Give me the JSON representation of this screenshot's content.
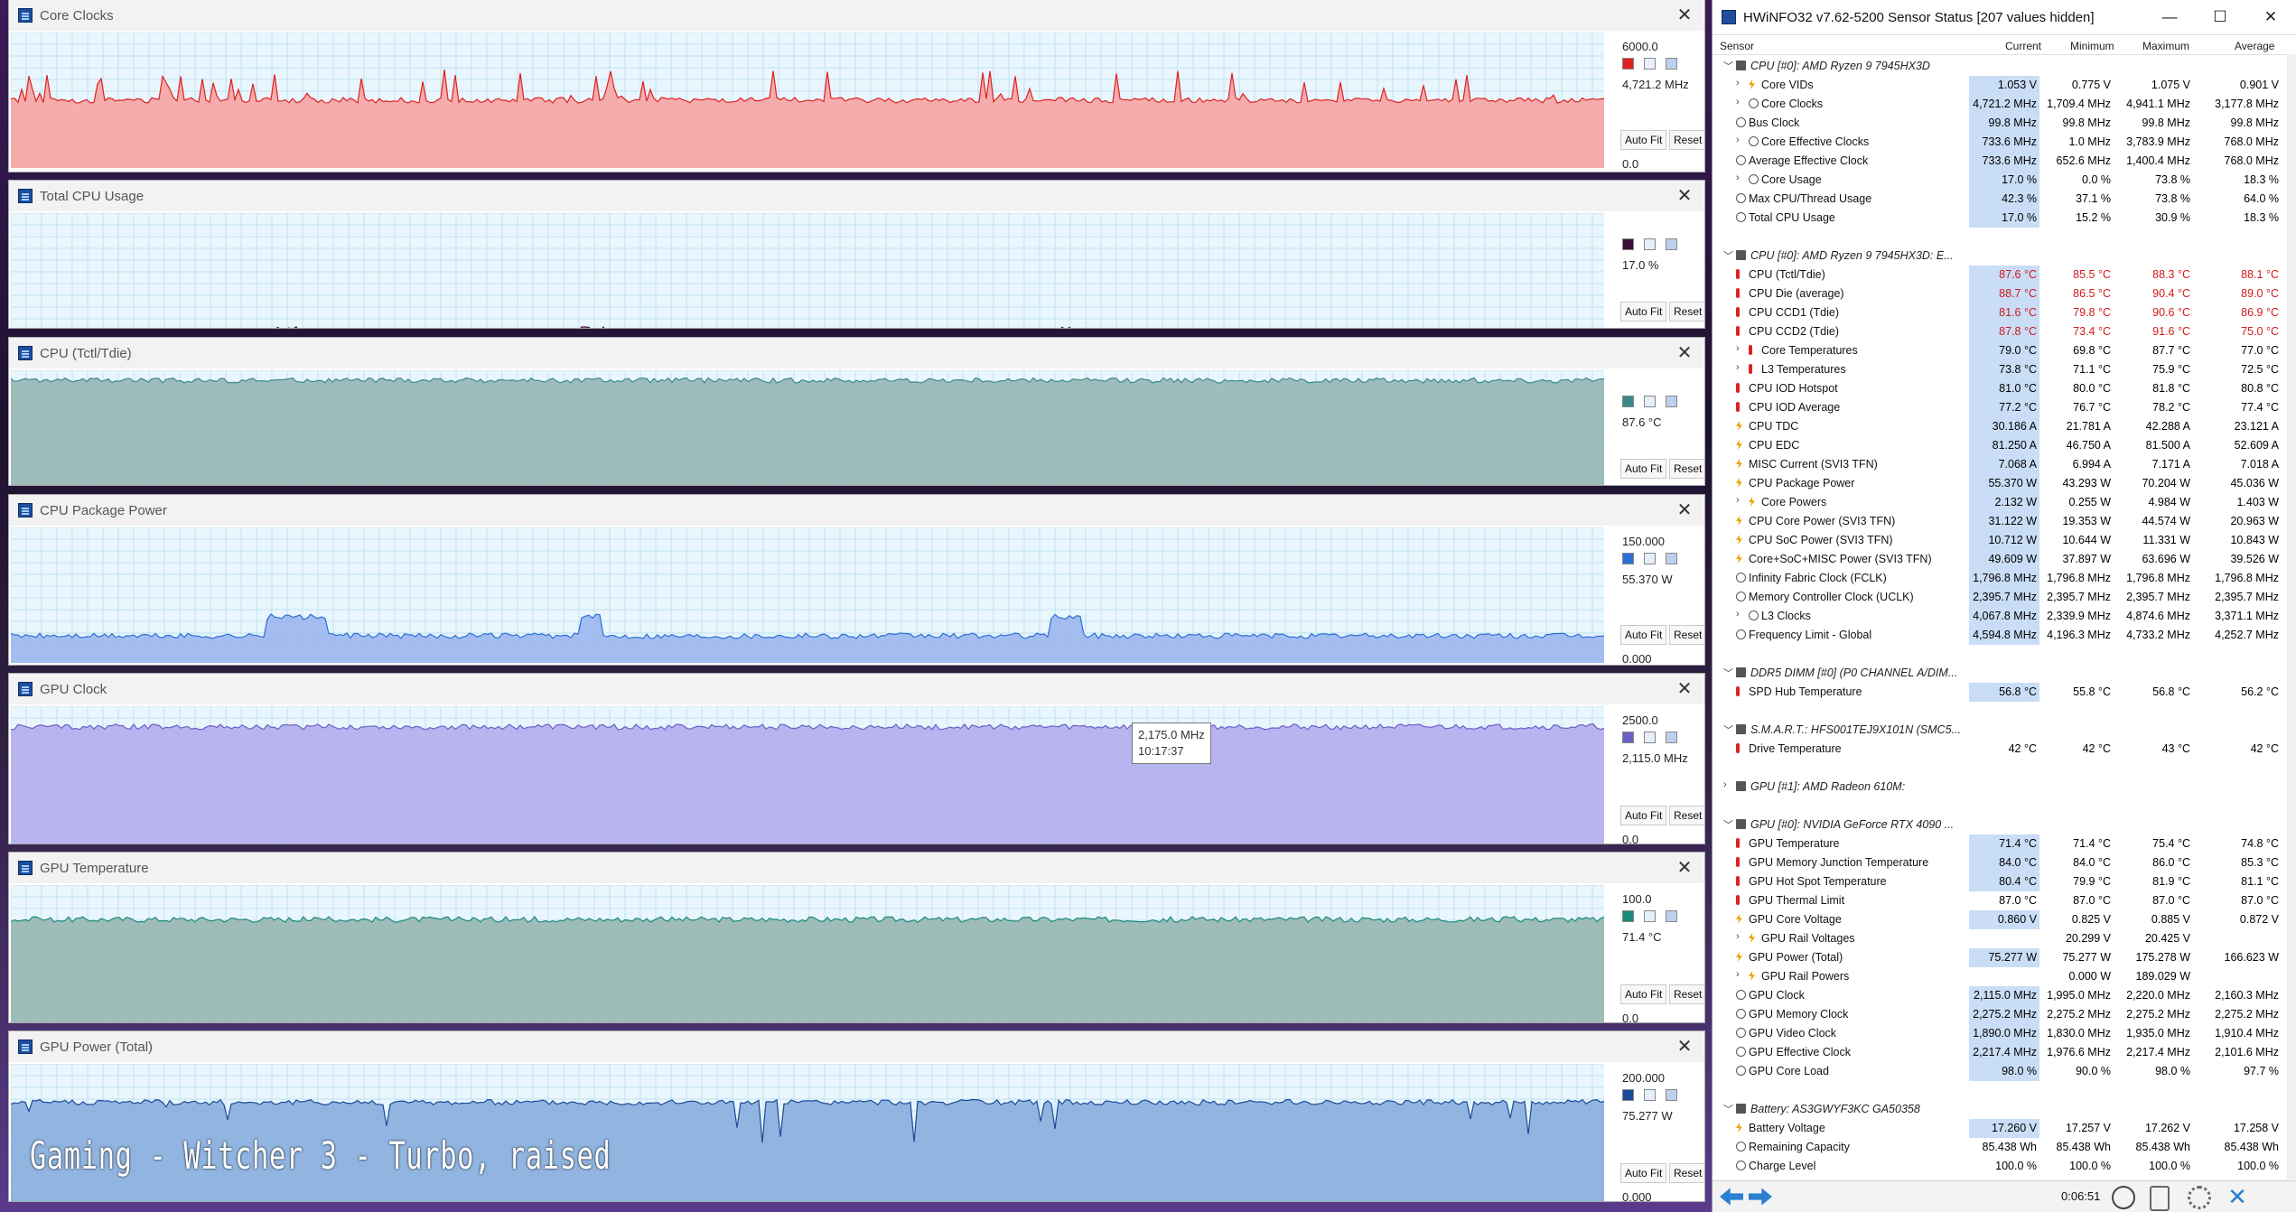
{
  "overlay_caption": "Gaming - Witcher 3 - Turbo, raised",
  "graphs": [
    {
      "title": "Core Clocks",
      "max": "6000.0",
      "current": "4,721.2 MHz",
      "min": "0.0",
      "color": "#e02020",
      "fill": "#f5a8a8"
    },
    {
      "title": "Total CPU Usage",
      "max": "",
      "current": "17.0 %",
      "min": "0.0",
      "color": "#3a0f3a",
      "fill": "#bcaec4"
    },
    {
      "title": "CPU (Tctl/Tdie)",
      "max": "",
      "current": "87.6 °C",
      "min": "0.0",
      "color": "#3a8a8a",
      "fill": "#9ab8b8"
    },
    {
      "title": "CPU Package Power",
      "max": "150.000",
      "current": "55.370 W",
      "min": "0.000",
      "color": "#2b6fd6",
      "fill": "#9fb9ef"
    },
    {
      "title": "GPU Clock",
      "max": "2500.0",
      "current": "2,115.0 MHz",
      "min": "0.0",
      "color": "#6a60c8",
      "fill": "#b4b0ee"
    },
    {
      "title": "GPU Temperature",
      "max": "100.0",
      "current": "71.4 °C",
      "min": "0.0",
      "color": "#1a8a7a",
      "fill": "#9ab8b4"
    },
    {
      "title": "GPU Power (Total)",
      "max": "200.000",
      "current": "75.277 W",
      "min": "0.000",
      "color": "#1a4a9a",
      "fill": "#8cb0de"
    }
  ],
  "buttons": {
    "autofit": "Auto Fit",
    "reset": "Reset"
  },
  "tooltip": {
    "value": "2,175.0 MHz",
    "time": "10:17:37"
  },
  "sensor_window": {
    "title": "HWiNFO32 v7.62-5200 Sensor Status [207 values hidden]",
    "columns": {
      "sensor": "Sensor",
      "current": "Current",
      "minimum": "Minimum",
      "maximum": "Maximum",
      "average": "Average"
    },
    "elapsed": "0:06:51"
  },
  "sensor_rows": [
    {
      "type": "group",
      "label": "CPU [#0]: AMD Ryzen 9 7945HX3D",
      "expand": "﹀"
    },
    {
      "type": "row",
      "icon": "volt",
      "exp": "›",
      "indent": 2,
      "label": "Core VIDs",
      "cur": "1.053 V",
      "min": "0.775 V",
      "max": "1.075 V",
      "avg": "0.901 V"
    },
    {
      "type": "row",
      "icon": "clock",
      "exp": "›",
      "indent": 2,
      "label": "Core Clocks",
      "cur": "4,721.2 MHz",
      "min": "1,709.4 MHz",
      "max": "4,941.1 MHz",
      "avg": "3,177.8 MHz"
    },
    {
      "type": "row",
      "icon": "clock",
      "indent": 1,
      "label": "Bus Clock",
      "cur": "99.8 MHz",
      "min": "99.8 MHz",
      "max": "99.8 MHz",
      "avg": "99.8 MHz"
    },
    {
      "type": "row",
      "icon": "clock",
      "exp": "›",
      "indent": 2,
      "label": "Core Effective Clocks",
      "cur": "733.6 MHz",
      "min": "1.0 MHz",
      "max": "3,783.9 MHz",
      "avg": "768.0 MHz"
    },
    {
      "type": "row",
      "icon": "clock",
      "indent": 1,
      "label": "Average Effective Clock",
      "cur": "733.6 MHz",
      "min": "652.6 MHz",
      "max": "1,400.4 MHz",
      "avg": "768.0 MHz"
    },
    {
      "type": "row",
      "icon": "clock",
      "exp": "›",
      "indent": 2,
      "label": "Core Usage",
      "cur": "17.0 %",
      "min": "0.0 %",
      "max": "73.8 %",
      "avg": "18.3 %"
    },
    {
      "type": "row",
      "icon": "clock",
      "indent": 1,
      "label": "Max CPU/Thread Usage",
      "cur": "42.3 %",
      "min": "37.1 %",
      "max": "73.8 %",
      "avg": "64.0 %"
    },
    {
      "type": "row",
      "icon": "clock",
      "indent": 1,
      "label": "Total CPU Usage",
      "cur": "17.0 %",
      "min": "15.2 %",
      "max": "30.9 %",
      "avg": "18.3 %"
    },
    {
      "type": "blank"
    },
    {
      "type": "group",
      "label": "CPU [#0]: AMD Ryzen 9 7945HX3D: E...",
      "expand": "﹀"
    },
    {
      "type": "row",
      "icon": "temp",
      "indent": 1,
      "red": true,
      "label": "CPU (Tctl/Tdie)",
      "cur": "87.6 °C",
      "min": "85.5 °C",
      "max": "88.3 °C",
      "avg": "88.1 °C"
    },
    {
      "type": "row",
      "icon": "temp",
      "indent": 1,
      "red": true,
      "label": "CPU Die (average)",
      "cur": "88.7 °C",
      "min": "86.5 °C",
      "max": "90.4 °C",
      "avg": "89.0 °C"
    },
    {
      "type": "row",
      "icon": "temp",
      "indent": 1,
      "red": true,
      "label": "CPU CCD1 (Tdie)",
      "cur": "81.6 °C",
      "min": "79.8 °C",
      "max": "90.6 °C",
      "avg": "86.9 °C",
      "redmax": true
    },
    {
      "type": "row",
      "icon": "temp",
      "indent": 1,
      "red": true,
      "label": "CPU CCD2 (Tdie)",
      "cur": "87.8 °C",
      "min": "73.4 °C",
      "max": "91.6 °C",
      "avg": "75.0 °C"
    },
    {
      "type": "row",
      "icon": "temp",
      "exp": "›",
      "indent": 2,
      "label": "Core Temperatures",
      "cur": "79.0 °C",
      "min": "69.8 °C",
      "max": "87.7 °C",
      "avg": "77.0 °C"
    },
    {
      "type": "row",
      "icon": "temp",
      "exp": "›",
      "indent": 2,
      "label": "L3 Temperatures",
      "cur": "73.8 °C",
      "min": "71.1 °C",
      "max": "75.9 °C",
      "avg": "72.5 °C"
    },
    {
      "type": "row",
      "icon": "temp",
      "indent": 1,
      "label": "CPU IOD Hotspot",
      "cur": "81.0 °C",
      "min": "80.0 °C",
      "max": "81.8 °C",
      "avg": "80.8 °C"
    },
    {
      "type": "row",
      "icon": "temp",
      "indent": 1,
      "label": "CPU IOD Average",
      "cur": "77.2 °C",
      "min": "76.7 °C",
      "max": "78.2 °C",
      "avg": "77.4 °C"
    },
    {
      "type": "row",
      "icon": "bolt",
      "indent": 1,
      "label": "CPU TDC",
      "cur": "30.186 A",
      "min": "21.781 A",
      "max": "42.288 A",
      "avg": "23.121 A"
    },
    {
      "type": "row",
      "icon": "bolt",
      "indent": 1,
      "label": "CPU EDC",
      "cur": "81.250 A",
      "min": "46.750 A",
      "max": "81.500 A",
      "avg": "52.609 A"
    },
    {
      "type": "row",
      "icon": "bolt",
      "indent": 1,
      "label": "MISC Current (SVI3 TFN)",
      "cur": "7.068 A",
      "min": "6.994 A",
      "max": "7.171 A",
      "avg": "7.018 A"
    },
    {
      "type": "row",
      "icon": "bolt",
      "indent": 1,
      "label": "CPU Package Power",
      "cur": "55.370 W",
      "min": "43.293 W",
      "max": "70.204 W",
      "avg": "45.036 W"
    },
    {
      "type": "row",
      "icon": "bolt",
      "exp": "›",
      "indent": 2,
      "label": "Core Powers",
      "cur": "2.132 W",
      "min": "0.255 W",
      "max": "4.984 W",
      "avg": "1.403 W"
    },
    {
      "type": "row",
      "icon": "bolt",
      "indent": 1,
      "label": "CPU Core Power (SVI3 TFN)",
      "cur": "31.122 W",
      "min": "19.353 W",
      "max": "44.574 W",
      "avg": "20.963 W"
    },
    {
      "type": "row",
      "icon": "bolt",
      "indent": 1,
      "label": "CPU SoC Power (SVI3 TFN)",
      "cur": "10.712 W",
      "min": "10.644 W",
      "max": "11.331 W",
      "avg": "10.843 W"
    },
    {
      "type": "row",
      "icon": "bolt",
      "indent": 1,
      "label": "Core+SoC+MISC Power (SVI3 TFN)",
      "cur": "49.609 W",
      "min": "37.897 W",
      "max": "63.696 W",
      "avg": "39.526 W"
    },
    {
      "type": "row",
      "icon": "clock",
      "indent": 1,
      "label": "Infinity Fabric Clock (FCLK)",
      "cur": "1,796.8 MHz",
      "min": "1,796.8 MHz",
      "max": "1,796.8 MHz",
      "avg": "1,796.8 MHz"
    },
    {
      "type": "row",
      "icon": "clock",
      "indent": 1,
      "label": "Memory Controller Clock (UCLK)",
      "cur": "2,395.7 MHz",
      "min": "2,395.7 MHz",
      "max": "2,395.7 MHz",
      "avg": "2,395.7 MHz"
    },
    {
      "type": "row",
      "icon": "clock",
      "exp": "›",
      "indent": 2,
      "label": "L3 Clocks",
      "cur": "4,067.8 MHz",
      "min": "2,339.9 MHz",
      "max": "4,874.6 MHz",
      "avg": "3,371.1 MHz"
    },
    {
      "type": "row",
      "icon": "clock",
      "indent": 1,
      "label": "Frequency Limit - Global",
      "cur": "4,594.8 MHz",
      "min": "4,196.3 MHz",
      "max": "4,733.2 MHz",
      "avg": "4,252.7 MHz"
    },
    {
      "type": "blank"
    },
    {
      "type": "group",
      "label": "DDR5 DIMM [#0] (P0 CHANNEL A/DIM...",
      "expand": "﹀"
    },
    {
      "type": "row",
      "icon": "temp",
      "indent": 1,
      "label": "SPD Hub Temperature",
      "cur": "56.8 °C",
      "min": "55.8 °C",
      "max": "56.8 °C",
      "avg": "56.2 °C"
    },
    {
      "type": "blank"
    },
    {
      "type": "group",
      "label": "S.M.A.R.T.: HFS001TEJ9X101N (SMC5...",
      "expand": "﹀"
    },
    {
      "type": "row",
      "icon": "temp",
      "indent": 1,
      "label": "Drive Temperature",
      "cur": "42 °C",
      "min": "42 °C",
      "max": "43 °C",
      "avg": "42 °C",
      "nohl": true
    },
    {
      "type": "blank"
    },
    {
      "type": "group",
      "label": "GPU [#1]: AMD Radeon 610M:",
      "expand": "›"
    },
    {
      "type": "blank"
    },
    {
      "type": "group",
      "label": "GPU [#0]: NVIDIA GeForce RTX 4090 ...",
      "expand": "﹀"
    },
    {
      "type": "row",
      "icon": "temp",
      "indent": 1,
      "label": "GPU Temperature",
      "cur": "71.4 °C",
      "min": "71.4 °C",
      "max": "75.4 °C",
      "avg": "74.8 °C"
    },
    {
      "type": "row",
      "icon": "temp",
      "indent": 1,
      "label": "GPU Memory Junction Temperature",
      "cur": "84.0 °C",
      "min": "84.0 °C",
      "max": "86.0 °C",
      "avg": "85.3 °C"
    },
    {
      "type": "row",
      "icon": "temp",
      "indent": 1,
      "label": "GPU Hot Spot Temperature",
      "cur": "80.4 °C",
      "min": "79.9 °C",
      "max": "81.9 °C",
      "avg": "81.1 °C"
    },
    {
      "type": "row",
      "icon": "temp",
      "indent": 1,
      "label": "GPU Thermal Limit",
      "cur": "87.0 °C",
      "min": "87.0 °C",
      "max": "87.0 °C",
      "avg": "87.0 °C",
      "nohl": true
    },
    {
      "type": "row",
      "icon": "bolt",
      "indent": 1,
      "label": "GPU Core Voltage",
      "cur": "0.860 V",
      "min": "0.825 V",
      "max": "0.885 V",
      "avg": "0.872 V"
    },
    {
      "type": "row",
      "icon": "bolt",
      "exp": "›",
      "indent": 2,
      "label": "GPU Rail Voltages",
      "cur": "",
      "min": "20.299 V",
      "max": "20.425 V",
      "avg": ""
    },
    {
      "type": "row",
      "icon": "bolt",
      "indent": 1,
      "label": "GPU Power (Total)",
      "cur": "75.277 W",
      "min": "75.277 W",
      "max": "175.278 W",
      "avg": "166.623 W"
    },
    {
      "type": "row",
      "icon": "bolt",
      "exp": "›",
      "indent": 2,
      "label": "GPU Rail Powers",
      "cur": "",
      "min": "0.000 W",
      "max": "189.029 W",
      "avg": ""
    },
    {
      "type": "row",
      "icon": "clock",
      "indent": 1,
      "label": "GPU Clock",
      "cur": "2,115.0 MHz",
      "min": "1,995.0 MHz",
      "max": "2,220.0 MHz",
      "avg": "2,160.3 MHz"
    },
    {
      "type": "row",
      "icon": "clock",
      "indent": 1,
      "label": "GPU Memory Clock",
      "cur": "2,275.2 MHz",
      "min": "2,275.2 MHz",
      "max": "2,275.2 MHz",
      "avg": "2,275.2 MHz"
    },
    {
      "type": "row",
      "icon": "clock",
      "indent": 1,
      "label": "GPU Video Clock",
      "cur": "1,890.0 MHz",
      "min": "1,830.0 MHz",
      "max": "1,935.0 MHz",
      "avg": "1,910.4 MHz"
    },
    {
      "type": "row",
      "icon": "clock",
      "indent": 1,
      "label": "GPU Effective Clock",
      "cur": "2,217.4 MHz",
      "min": "1,976.6 MHz",
      "max": "2,217.4 MHz",
      "avg": "2,101.6 MHz"
    },
    {
      "type": "row",
      "icon": "clock",
      "indent": 1,
      "label": "GPU Core Load",
      "cur": "98.0 %",
      "min": "90.0 %",
      "max": "98.0 %",
      "avg": "97.7 %"
    },
    {
      "type": "blank"
    },
    {
      "type": "group",
      "label": "Battery: AS3GWYF3KC GA50358",
      "expand": "﹀"
    },
    {
      "type": "row",
      "icon": "bolt",
      "indent": 1,
      "label": "Battery Voltage",
      "cur": "17.260 V",
      "min": "17.257 V",
      "max": "17.262 V",
      "avg": "17.258 V"
    },
    {
      "type": "row",
      "icon": "clock",
      "indent": 1,
      "label": "Remaining Capacity",
      "cur": "85.438 Wh",
      "min": "85.438 Wh",
      "max": "85.438 Wh",
      "avg": "85.438 Wh",
      "nohl": true
    },
    {
      "type": "row",
      "icon": "clock",
      "indent": 1,
      "label": "Charge Level",
      "cur": "100.0 %",
      "min": "100.0 %",
      "max": "100.0 %",
      "avg": "100.0 %",
      "nohl": true
    }
  ]
}
